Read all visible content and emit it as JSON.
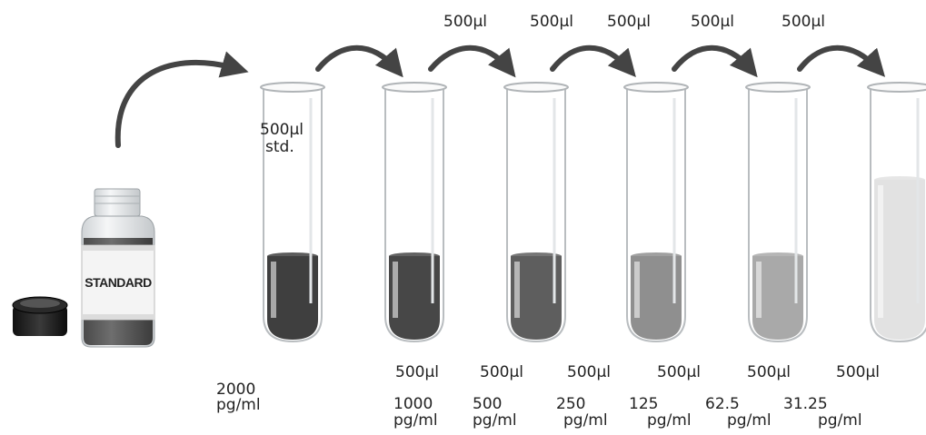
{
  "bottle": {
    "label": "STANDARD"
  },
  "first_tube_label": {
    "line1": "500µl",
    "line2": "std."
  },
  "transfer_labels": [
    "500µl",
    "500µl",
    "500µl",
    "500µl",
    "500µl"
  ],
  "diluent_labels": [
    "500µl",
    "500µl",
    "500µl",
    "500µl",
    "500µl",
    "500µl"
  ],
  "concentrations": [
    {
      "value": "2000",
      "unit": "pg/ml"
    },
    {
      "value": "1000",
      "unit": "pg/ml"
    },
    {
      "value": "500",
      "unit": "pg/ml"
    },
    {
      "value": "250",
      "unit": "pg/ml"
    },
    {
      "value": "125",
      "unit": "pg/ml"
    },
    {
      "value": "62.5",
      "unit": "pg/ml"
    },
    {
      "value": "31.25",
      "unit": "pg/ml"
    }
  ],
  "tube_fill_colors": [
    "#3f3f3f",
    "#474747",
    "#5e5e5e",
    "#8f8f8f",
    "#a9a9a9",
    "#e2e2e2"
  ],
  "arrow_color": "#444444"
}
